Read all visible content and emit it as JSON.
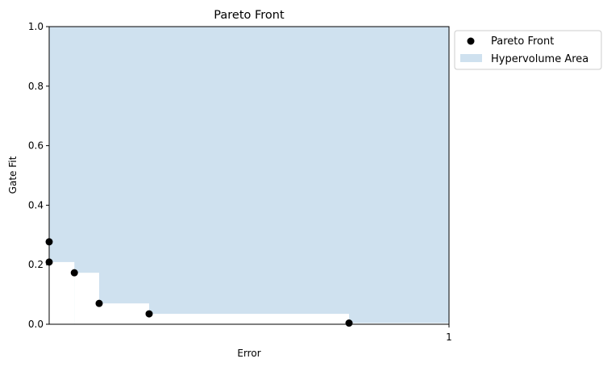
{
  "chart_data": {
    "type": "scatter",
    "title": "Pareto Front",
    "xlabel": "Error",
    "ylabel": "Gate Fit",
    "xlim": [
      0,
      1
    ],
    "ylim": [
      0,
      1
    ],
    "xticks": [
      {
        "value": 1,
        "label": "1"
      }
    ],
    "yticks": [
      {
        "value": 0.0,
        "label": "0.0"
      },
      {
        "value": 0.2,
        "label": "0.2"
      },
      {
        "value": 0.4,
        "label": "0.4"
      },
      {
        "value": 0.6,
        "label": "0.6"
      },
      {
        "value": 0.8,
        "label": "0.8"
      },
      {
        "value": 1.0,
        "label": "1.0"
      }
    ],
    "grid": false,
    "legend_position": "outside-top-right",
    "series": [
      {
        "name": "Pareto Front",
        "kind": "scatter",
        "color": "#000000",
        "points": [
          {
            "x": 0.0,
            "y": 0.277
          },
          {
            "x": 0.0,
            "y": 0.209
          },
          {
            "x": 0.063,
            "y": 0.173
          },
          {
            "x": 0.125,
            "y": 0.07
          },
          {
            "x": 0.25,
            "y": 0.035
          },
          {
            "x": 0.75,
            "y": 0.004
          }
        ]
      },
      {
        "name": "Hypervolume Area",
        "kind": "area",
        "color": "#cfe1ef",
        "steps": [
          {
            "x0": 0.0,
            "x1": 0.063,
            "y": 0.209
          },
          {
            "x0": 0.063,
            "x1": 0.125,
            "y": 0.173
          },
          {
            "x0": 0.125,
            "x1": 0.25,
            "y": 0.07
          },
          {
            "x0": 0.25,
            "x1": 0.75,
            "y": 0.035
          },
          {
            "x0": 0.75,
            "x1": 1.0,
            "y": 0.004
          }
        ]
      }
    ]
  }
}
